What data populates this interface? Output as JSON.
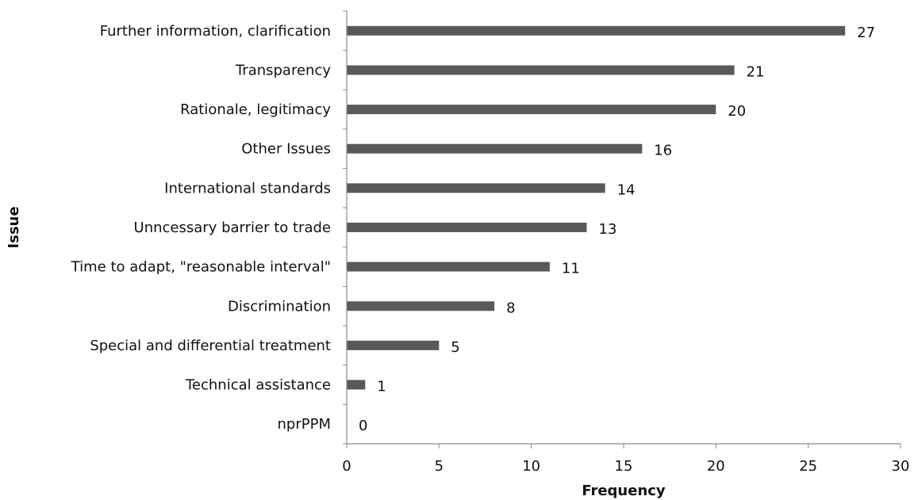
{
  "chart_data": {
    "type": "bar",
    "orientation": "horizontal",
    "categories": [
      "Further information, clarification",
      "Transparency",
      "Rationale, legitimacy",
      "Other Issues",
      "International standards",
      "Unncessary barrier to trade",
      "Time to adapt, \"reasonable interval\"",
      "Discrimination ",
      "Special and differential treatment",
      "Technical assistance",
      "nprPPM"
    ],
    "values": [
      27,
      21,
      20,
      16,
      14,
      13,
      11,
      8,
      5,
      1,
      0
    ],
    "xlabel": "Frequency",
    "ylabel": "Issue",
    "xlim": [
      0,
      30
    ],
    "xticks": [
      0,
      5,
      10,
      15,
      20,
      25,
      30
    ],
    "grid": false,
    "data_labels": true,
    "colors": {
      "bar": "#595959",
      "axis": "#8c8c8c",
      "text": "#111111"
    }
  }
}
